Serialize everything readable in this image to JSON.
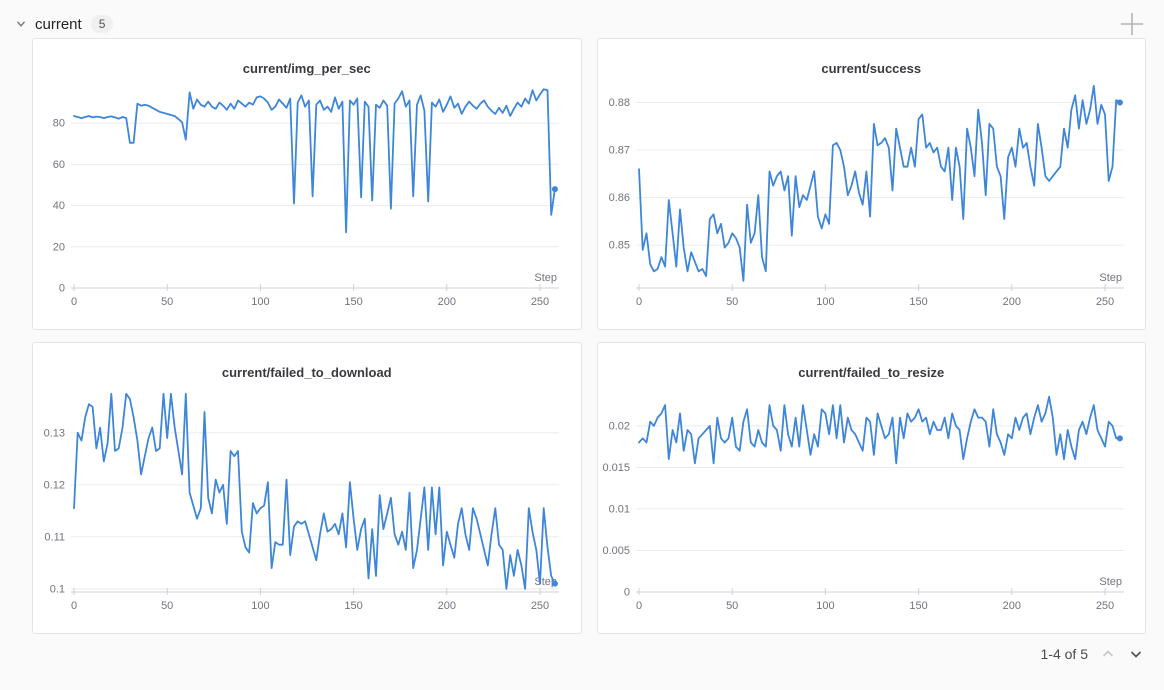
{
  "header": {
    "section_label": "current",
    "panel_count": "5"
  },
  "pagination": {
    "label": "1-4 of 5"
  },
  "colors": {
    "line": "#3e86d9",
    "grid": "#ebebee",
    "axis": "#d2d2d8",
    "tick": "#cdd0d4",
    "tick_label": "#73737d",
    "title_text": "#3a3a3e",
    "page_bg": "#fafafa",
    "panel_bg": "#ffffff",
    "panel_border": "#e4e4e7"
  },
  "chart_data": [
    {
      "type": "line",
      "title": "current/img_per_sec",
      "xlabel": "Step",
      "x_start": 0,
      "x_step": 2,
      "x_ticks": [
        0,
        50,
        100,
        150,
        200,
        250
      ],
      "y_ticks": [
        {
          "v": 0,
          "label": "0"
        },
        {
          "v": 20,
          "label": "20"
        },
        {
          "v": 40,
          "label": "40"
        },
        {
          "v": 60,
          "label": "60"
        },
        {
          "v": 80,
          "label": "80"
        }
      ],
      "y_min": 0,
      "y_max": 100,
      "end_marker": true,
      "values": [
        83.5,
        83,
        82.5,
        83,
        83.5,
        82.8,
        83.2,
        83,
        82.5,
        83,
        83.3,
        82.8,
        82.2,
        83,
        82.5,
        70.5,
        70.5,
        89.5,
        88.5,
        89,
        88.5,
        87.5,
        86.5,
        85.5,
        85,
        84.5,
        84,
        83.5,
        82,
        80.5,
        72,
        95,
        87,
        91.5,
        89,
        88,
        90.5,
        88,
        87,
        90,
        88.5,
        86.5,
        89.5,
        87,
        91,
        89.5,
        88,
        90,
        89,
        92.5,
        93,
        92,
        90,
        86.5,
        88,
        91.5,
        89.5,
        87.5,
        92,
        41,
        90,
        93.5,
        88,
        91,
        44.5,
        89,
        91,
        86.5,
        88,
        85.5,
        92.5,
        87,
        90.5,
        27,
        91,
        89,
        92,
        44,
        90.5,
        88,
        42.5,
        89,
        87.5,
        91,
        88.5,
        38.5,
        89.5,
        92,
        95.5,
        88,
        91,
        44.5,
        89,
        93.5,
        86,
        42,
        90,
        88,
        91.5,
        85.5,
        89,
        93,
        87.5,
        89.5,
        84.5,
        88,
        90.5,
        88.5,
        87,
        89.5,
        91,
        88,
        86,
        84.5,
        87.5,
        85,
        88.5,
        83.5,
        87,
        90,
        88,
        92,
        89.5,
        96,
        91,
        94,
        96.5,
        96,
        35.5,
        48
      ]
    },
    {
      "type": "line",
      "title": "current/success",
      "xlabel": "Step",
      "x_start": 0,
      "x_step": 2,
      "x_ticks": [
        0,
        50,
        100,
        150,
        200,
        250
      ],
      "y_ticks": [
        {
          "v": 0.85,
          "label": "0.85"
        },
        {
          "v": 0.86,
          "label": "0.86"
        },
        {
          "v": 0.87,
          "label": "0.87"
        },
        {
          "v": 0.88,
          "label": "0.88"
        }
      ],
      "y_min": 0.841,
      "y_max": 0.8843,
      "end_marker": true,
      "values": [
        0.866,
        0.849,
        0.8525,
        0.846,
        0.8445,
        0.845,
        0.8475,
        0.8455,
        0.8595,
        0.8525,
        0.8455,
        0.8575,
        0.8495,
        0.8445,
        0.8485,
        0.8465,
        0.8445,
        0.845,
        0.8435,
        0.8555,
        0.8565,
        0.8525,
        0.8545,
        0.8495,
        0.8505,
        0.8525,
        0.8515,
        0.8495,
        0.8425,
        0.8585,
        0.8505,
        0.8525,
        0.8605,
        0.8475,
        0.8445,
        0.8655,
        0.8625,
        0.8645,
        0.8655,
        0.8615,
        0.8645,
        0.852,
        0.8645,
        0.858,
        0.8605,
        0.8595,
        0.8625,
        0.8655,
        0.856,
        0.8535,
        0.8565,
        0.8545,
        0.871,
        0.8715,
        0.87,
        0.8665,
        0.8605,
        0.8625,
        0.8655,
        0.861,
        0.8585,
        0.8655,
        0.856,
        0.8755,
        0.871,
        0.8715,
        0.8725,
        0.8705,
        0.8615,
        0.8745,
        0.8705,
        0.8665,
        0.8665,
        0.8705,
        0.8665,
        0.8765,
        0.8775,
        0.8705,
        0.8715,
        0.8695,
        0.8705,
        0.8665,
        0.8655,
        0.8705,
        0.8595,
        0.8705,
        0.8665,
        0.8555,
        0.8745,
        0.8705,
        0.8645,
        0.8785,
        0.8715,
        0.8605,
        0.8755,
        0.8745,
        0.8665,
        0.8645,
        0.8555,
        0.8685,
        0.8705,
        0.8665,
        0.8745,
        0.8705,
        0.8715,
        0.8665,
        0.8625,
        0.8755,
        0.8705,
        0.8645,
        0.8635,
        0.8645,
        0.8655,
        0.8665,
        0.8745,
        0.8705,
        0.8785,
        0.8815,
        0.8745,
        0.8805,
        0.8755,
        0.8785,
        0.8835,
        0.8755,
        0.8795,
        0.8775,
        0.8635,
        0.8665,
        0.8805,
        0.88
      ]
    },
    {
      "type": "line",
      "title": "current/failed_to_download",
      "xlabel": "Step",
      "x_start": 0,
      "x_step": 2,
      "x_ticks": [
        0,
        50,
        100,
        150,
        200,
        250
      ],
      "y_ticks": [
        {
          "v": 0.1,
          "label": "0.1"
        },
        {
          "v": 0.11,
          "label": "0.11"
        },
        {
          "v": 0.12,
          "label": "0.12"
        },
        {
          "v": 0.13,
          "label": "0.13"
        }
      ],
      "y_min": 0.0994,
      "y_max": 0.139,
      "end_marker": true,
      "values": [
        0.1155,
        0.13,
        0.1285,
        0.133,
        0.1355,
        0.135,
        0.127,
        0.131,
        0.1245,
        0.128,
        0.1375,
        0.1265,
        0.127,
        0.131,
        0.1375,
        0.1365,
        0.133,
        0.1285,
        0.122,
        0.1255,
        0.129,
        0.131,
        0.1265,
        0.127,
        0.1375,
        0.129,
        0.1375,
        0.131,
        0.1265,
        0.122,
        0.1375,
        0.1185,
        0.116,
        0.1135,
        0.1155,
        0.134,
        0.1175,
        0.1145,
        0.121,
        0.1185,
        0.12,
        0.1125,
        0.1265,
        0.1255,
        0.1265,
        0.111,
        0.108,
        0.107,
        0.1165,
        0.1145,
        0.1155,
        0.116,
        0.1205,
        0.104,
        0.109,
        0.1085,
        0.1085,
        0.121,
        0.1065,
        0.112,
        0.113,
        0.1125,
        0.113,
        0.1105,
        0.108,
        0.1055,
        0.1105,
        0.1145,
        0.111,
        0.1115,
        0.1125,
        0.1105,
        0.1145,
        0.108,
        0.1205,
        0.1135,
        0.1075,
        0.1115,
        0.1135,
        0.102,
        0.1115,
        0.1025,
        0.118,
        0.1115,
        0.1145,
        0.1175,
        0.1105,
        0.1085,
        0.111,
        0.1075,
        0.1185,
        0.104,
        0.1075,
        0.1135,
        0.1195,
        0.1075,
        0.1195,
        0.1105,
        0.1195,
        0.1045,
        0.111,
        0.1085,
        0.106,
        0.1125,
        0.1155,
        0.1105,
        0.1075,
        0.1155,
        0.1135,
        0.1105,
        0.1075,
        0.1045,
        0.1105,
        0.1155,
        0.1085,
        0.1075,
        0.1,
        0.1065,
        0.1025,
        0.1075,
        0.1045,
        0.1,
        0.1155,
        0.111,
        0.1075,
        0.101,
        0.1155,
        0.108,
        0.1025,
        0.101
      ]
    },
    {
      "type": "line",
      "title": "current/failed_to_resize",
      "xlabel": "Step",
      "x_start": 0,
      "x_step": 2,
      "x_ticks": [
        0,
        50,
        100,
        150,
        200,
        250
      ],
      "y_ticks": [
        {
          "v": 0,
          "label": "0"
        },
        {
          "v": 0.005,
          "label": "0.005"
        },
        {
          "v": 0.01,
          "label": "0.01"
        },
        {
          "v": 0.015,
          "label": "0.015"
        },
        {
          "v": 0.02,
          "label": "0.02"
        }
      ],
      "y_min": 0,
      "y_max": 0.0248,
      "end_marker": true,
      "values": [
        0.018,
        0.0185,
        0.018,
        0.0205,
        0.02,
        0.021,
        0.0215,
        0.0225,
        0.016,
        0.0195,
        0.018,
        0.0215,
        0.017,
        0.0195,
        0.019,
        0.0155,
        0.0185,
        0.019,
        0.0195,
        0.02,
        0.0155,
        0.021,
        0.0185,
        0.018,
        0.0185,
        0.021,
        0.0175,
        0.017,
        0.0205,
        0.022,
        0.018,
        0.0175,
        0.0195,
        0.018,
        0.0175,
        0.0225,
        0.02,
        0.0195,
        0.017,
        0.0225,
        0.019,
        0.0175,
        0.021,
        0.0175,
        0.0225,
        0.0195,
        0.0165,
        0.019,
        0.0175,
        0.022,
        0.0215,
        0.019,
        0.0225,
        0.0185,
        0.0225,
        0.018,
        0.021,
        0.0195,
        0.019,
        0.018,
        0.017,
        0.021,
        0.0205,
        0.0165,
        0.0215,
        0.02,
        0.0185,
        0.019,
        0.021,
        0.0155,
        0.021,
        0.0185,
        0.0215,
        0.0205,
        0.021,
        0.022,
        0.0205,
        0.021,
        0.019,
        0.0205,
        0.0195,
        0.0195,
        0.021,
        0.0185,
        0.0215,
        0.02,
        0.0195,
        0.016,
        0.0185,
        0.0205,
        0.022,
        0.021,
        0.021,
        0.0205,
        0.0175,
        0.022,
        0.019,
        0.018,
        0.0165,
        0.019,
        0.0185,
        0.021,
        0.0195,
        0.021,
        0.0215,
        0.019,
        0.021,
        0.0225,
        0.0205,
        0.0215,
        0.0235,
        0.021,
        0.0165,
        0.019,
        0.016,
        0.0195,
        0.0175,
        0.016,
        0.0195,
        0.0205,
        0.019,
        0.021,
        0.0225,
        0.0195,
        0.0185,
        0.0175,
        0.0205,
        0.02,
        0.0185,
        0.0185
      ]
    }
  ]
}
